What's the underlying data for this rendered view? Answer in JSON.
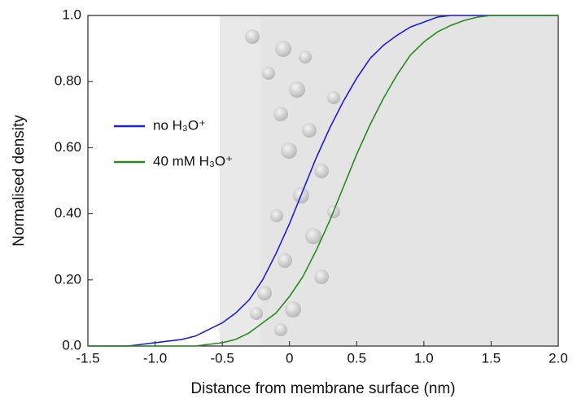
{
  "chart_data": {
    "type": "line",
    "x_label": "Distance from membrane surface (nm)",
    "y_label": "Normalised density",
    "x": [
      -1.5,
      -1.4,
      -1.3,
      -1.2,
      -1.1,
      -1.0,
      -0.9,
      -0.8,
      -0.7,
      -0.6,
      -0.5,
      -0.4,
      -0.3,
      -0.2,
      -0.1,
      0.0,
      0.1,
      0.2,
      0.3,
      0.4,
      0.5,
      0.6,
      0.7,
      0.8,
      0.9,
      1.0,
      1.1,
      1.2,
      1.3,
      1.4,
      1.5,
      1.6,
      1.7,
      1.8,
      1.9,
      2.0
    ],
    "series": [
      {
        "name": "no H₃O⁺",
        "color": "#1f1fd0",
        "values": [
          0,
          0,
          0,
          0,
          0.005,
          0.01,
          0.015,
          0.02,
          0.03,
          0.05,
          0.07,
          0.1,
          0.14,
          0.2,
          0.28,
          0.37,
          0.47,
          0.57,
          0.66,
          0.74,
          0.81,
          0.87,
          0.91,
          0.94,
          0.965,
          0.98,
          0.995,
          1,
          1,
          1,
          1,
          1,
          1,
          1,
          1,
          1
        ]
      },
      {
        "name": "40 mM  H₃O⁺",
        "color": "#2a8a1e",
        "values": [
          0,
          0,
          0,
          0,
          0,
          0,
          0,
          0,
          0,
          0.005,
          0.01,
          0.02,
          0.04,
          0.07,
          0.1,
          0.15,
          0.21,
          0.29,
          0.38,
          0.48,
          0.58,
          0.67,
          0.75,
          0.82,
          0.88,
          0.92,
          0.95,
          0.97,
          0.985,
          0.995,
          1,
          1,
          1,
          1,
          1,
          1
        ]
      }
    ],
    "xlim": [
      -1.5,
      2.0
    ],
    "xticks": [
      -1.5,
      {
        "value": -1.0,
        "label": "-1.0"
      },
      -0.5,
      0,
      0.5,
      {
        "value": 1.0,
        "label": "1.0"
      },
      1.5,
      {
        "value": 2.0,
        "label": "2.0"
      }
    ],
    "ylim": [
      0,
      1.0
    ],
    "yticks": [
      {
        "value": 0,
        "label": "0.0"
      },
      {
        "value": 0.2,
        "label": "0.20"
      },
      {
        "value": 0.4,
        "label": "0.40"
      },
      {
        "value": 0.6,
        "label": "0.60"
      },
      {
        "value": 0.8,
        "label": "0.80"
      },
      {
        "value": 1.0,
        "label": "1.0"
      }
    ],
    "legend": "upper-left"
  }
}
